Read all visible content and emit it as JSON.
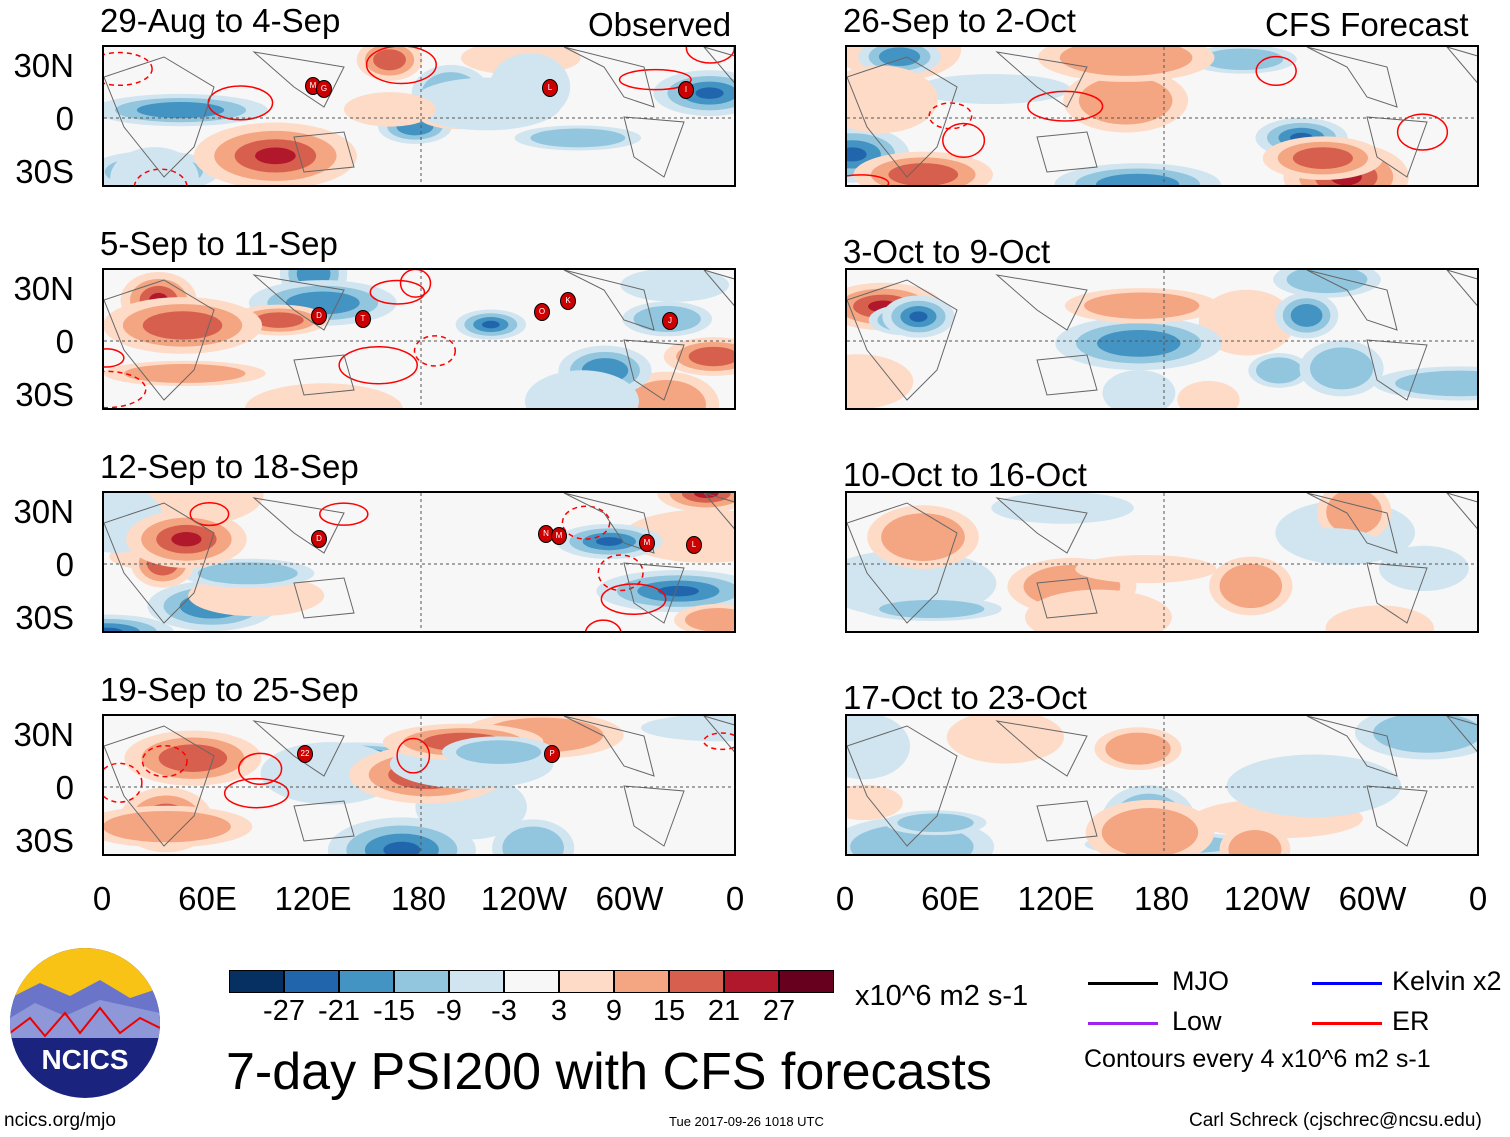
{
  "headers": {
    "observed": "Observed",
    "forecast": "CFS Forecast"
  },
  "panels": [
    {
      "title": "29-Aug to 4-Sep",
      "storms": [
        "M",
        "G",
        "L",
        "I"
      ]
    },
    {
      "title": "26-Sep to 2-Oct",
      "storms": []
    },
    {
      "title": "5-Sep to 11-Sep",
      "storms": [
        "D",
        "T",
        "O",
        "K",
        "J"
      ]
    },
    {
      "title": "3-Oct to 9-Oct",
      "storms": []
    },
    {
      "title": "12-Sep to 18-Sep",
      "storms": [
        "D",
        "N",
        "M",
        "M",
        "L"
      ]
    },
    {
      "title": "10-Oct to 16-Oct",
      "storms": []
    },
    {
      "title": "19-Sep to 25-Sep",
      "storms": [
        "22",
        "P"
      ]
    },
    {
      "title": "17-Oct to 23-Oct",
      "storms": []
    }
  ],
  "lat_labels": [
    "30N",
    "0",
    "30S"
  ],
  "lon_labels": [
    "0",
    "60E",
    "120E",
    "180",
    "120W",
    "60W",
    "0"
  ],
  "colorbar": {
    "colors": [
      "#053061",
      "#2166ac",
      "#4393c3",
      "#92c5de",
      "#d1e5f0",
      "#f7f7f7",
      "#fddbc7",
      "#f4a582",
      "#d6604d",
      "#b2182b",
      "#67001f"
    ],
    "labels": [
      "-27",
      "-21",
      "-15",
      "-9",
      "-3",
      "3",
      "9",
      "15",
      "21",
      "27"
    ],
    "units": "x10^6 m2 s-1"
  },
  "title": "7-day PSI200 with CFS forecasts",
  "legend": {
    "mjo": "MJO",
    "kelvin": "Kelvin x2",
    "low": "Low",
    "er": "ER",
    "contours": "Contours every 4 x10^6 m2 s-1",
    "colors": {
      "mjo": "#000000",
      "kelvin": "#0000ff",
      "low": "#a020f0",
      "er": "#ff0000"
    }
  },
  "logo": {
    "text": "NCICS"
  },
  "footer": {
    "url": "ncics.org/mjo",
    "timestamp": "Tue 2017-09-26 1018 UTC",
    "author": "Carl Schreck (cjschrec@ncsu.edu)"
  }
}
